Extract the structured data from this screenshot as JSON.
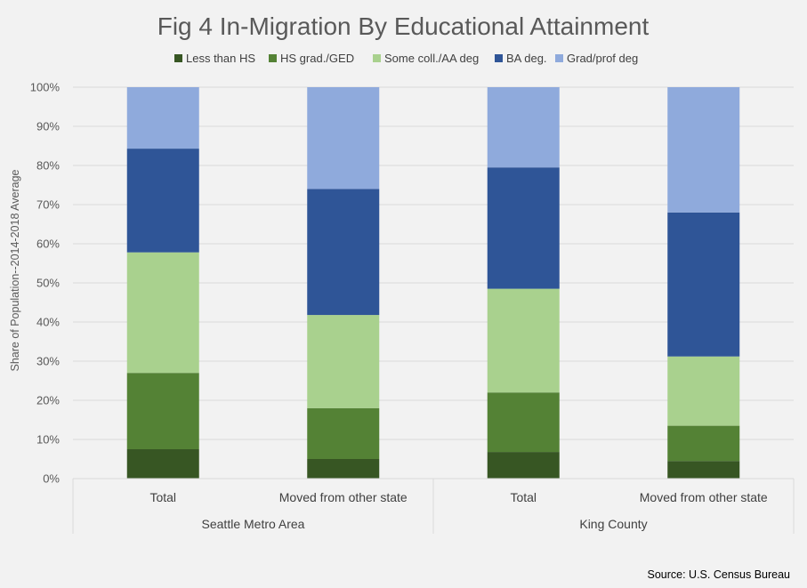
{
  "chart_data": {
    "type": "bar",
    "stacked": true,
    "title": "Fig 4 In-Migration By Educational Attainment",
    "ylabel": "Share of Population--2014-2018 Average",
    "xlabel": "",
    "ylim": [
      0,
      100
    ],
    "yticks": [
      "0%",
      "10%",
      "20%",
      "30%",
      "40%",
      "50%",
      "60%",
      "70%",
      "80%",
      "90%",
      "100%"
    ],
    "grid": true,
    "legend": "top",
    "categories": [
      "Total",
      "Moved from other state",
      "Total",
      "Moved from other state"
    ],
    "groups": [
      "Seattle Metro Area",
      "King County"
    ],
    "series": [
      {
        "name": "Less than HS",
        "color": "#375623",
        "values": [
          7.5,
          5.0,
          6.8,
          4.5
        ]
      },
      {
        "name": "HS grad./GED",
        "color": "#548235",
        "values": [
          19.5,
          13.0,
          15.2,
          9.0
        ]
      },
      {
        "name": "Some coll./AA deg",
        "color": "#a9d18e",
        "values": [
          30.8,
          23.8,
          26.5,
          17.7
        ]
      },
      {
        "name": "BA deg.",
        "color": "#2f5597",
        "values": [
          26.5,
          32.2,
          31.0,
          36.8
        ]
      },
      {
        "name": "Grad/prof deg",
        "color": "#8faadc",
        "values": [
          15.7,
          26.0,
          20.5,
          32.0
        ]
      }
    ],
    "source": "Source: U.S. Census Bureau"
  }
}
